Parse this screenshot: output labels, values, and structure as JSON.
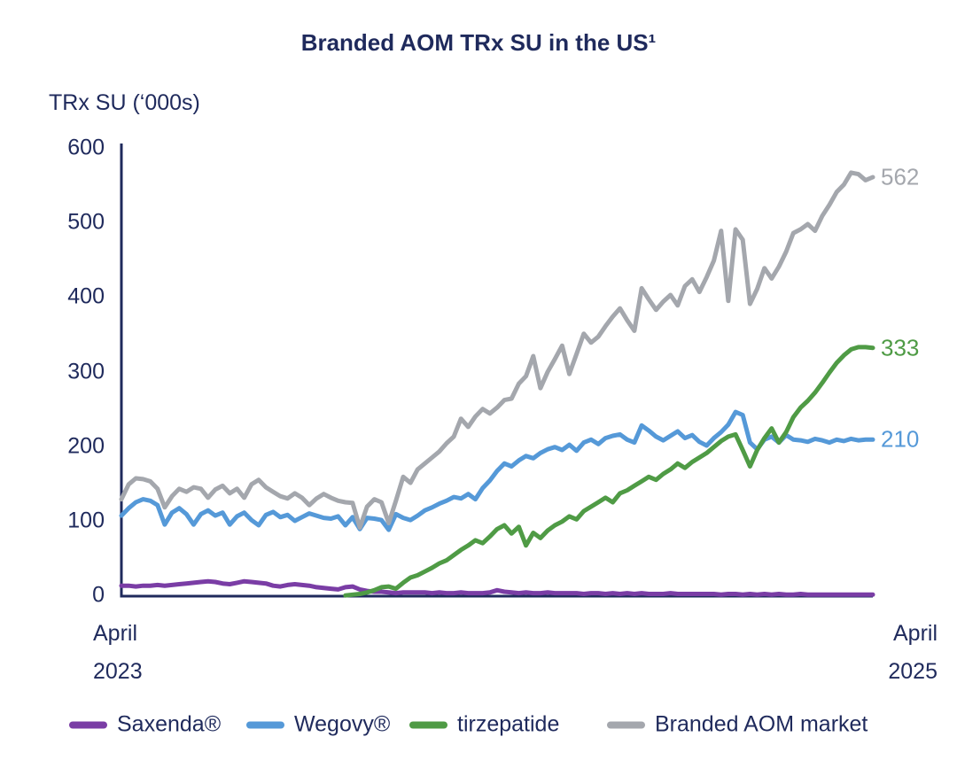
{
  "title": "Branded AOM TRx SU in the US¹",
  "y_axis": {
    "unit_label": "TRx SU (‘000s)",
    "ticks": [
      600,
      500,
      400,
      300,
      200,
      100,
      0
    ],
    "min": 0,
    "max": 600
  },
  "x_axis": {
    "left_label_line1": "April",
    "left_label_line2": "2023",
    "right_label_line1": "April",
    "right_label_line2": "2025"
  },
  "colors": {
    "navy_text": "#1f2a5c",
    "axis": "#1f2a5c",
    "saxenda": "#7a3da5",
    "wegovy": "#5599d8",
    "tirzepatide": "#4f9b45",
    "market": "#a4a7ad"
  },
  "legend": {
    "items": [
      {
        "label": "Saxenda®",
        "color": "#7a3da5"
      },
      {
        "label": "Wegovy®",
        "color": "#5599d8"
      },
      {
        "label": "tirzepatide",
        "color": "#4f9b45"
      },
      {
        "label": "Branded AOM market",
        "color": "#a4a7ad"
      }
    ]
  },
  "chart_data": {
    "type": "line",
    "title": "Branded AOM TRx SU in the US¹",
    "ylabel": "TRx SU (‘000s)",
    "ylim": [
      0,
      600
    ],
    "x_unit": "weeks",
    "x_range": [
      "April 2023",
      "April 2025"
    ],
    "grid": false,
    "legend_position": "bottom",
    "series": [
      {
        "name": "Saxenda®",
        "color": "#7a3da5",
        "end_label": null,
        "values": [
          14,
          14,
          13,
          14,
          14,
          15,
          14,
          15,
          16,
          17,
          18,
          19,
          20,
          19,
          17,
          16,
          18,
          20,
          19,
          18,
          17,
          14,
          13,
          15,
          16,
          15,
          14,
          12,
          11,
          10,
          9,
          12,
          13,
          9,
          7,
          6,
          6,
          5,
          4,
          5,
          5,
          5,
          5,
          4,
          5,
          4,
          4,
          5,
          4,
          4,
          4,
          5,
          8,
          6,
          5,
          4,
          5,
          4,
          4,
          5,
          4,
          4,
          4,
          4,
          3,
          4,
          4,
          3,
          4,
          3,
          4,
          3,
          4,
          3,
          3,
          3,
          4,
          3,
          3,
          3,
          3,
          3,
          3,
          2,
          3,
          3,
          2,
          3,
          2,
          3,
          2,
          3,
          2,
          2,
          3,
          2,
          2,
          2,
          2,
          2,
          2,
          2,
          2,
          2,
          2
        ]
      },
      {
        "name": "Wegovy®",
        "color": "#5599d8",
        "end_label": "210",
        "values": [
          108,
          118,
          126,
          130,
          128,
          122,
          96,
          112,
          118,
          110,
          96,
          110,
          115,
          108,
          112,
          96,
          107,
          112,
          102,
          95,
          109,
          113,
          106,
          109,
          101,
          106,
          111,
          108,
          105,
          104,
          107,
          95,
          106,
          90,
          105,
          104,
          102,
          89,
          110,
          105,
          102,
          108,
          115,
          119,
          124,
          128,
          133,
          131,
          137,
          130,
          145,
          155,
          168,
          178,
          174,
          182,
          188,
          185,
          192,
          197,
          200,
          196,
          203,
          195,
          206,
          210,
          204,
          212,
          215,
          217,
          210,
          206,
          229,
          222,
          214,
          209,
          215,
          221,
          212,
          216,
          207,
          202,
          212,
          220,
          230,
          247,
          243,
          206,
          197,
          210,
          214,
          206,
          216,
          210,
          209,
          207,
          211,
          209,
          206,
          210,
          208,
          211,
          209,
          210,
          210
        ]
      },
      {
        "name": "tirzepatide",
        "color": "#4f9b45",
        "end_label": "333",
        "values": [
          null,
          null,
          null,
          null,
          null,
          null,
          null,
          null,
          null,
          null,
          null,
          null,
          null,
          null,
          null,
          null,
          null,
          null,
          null,
          null,
          null,
          null,
          null,
          null,
          null,
          null,
          null,
          null,
          null,
          null,
          null,
          1,
          2,
          3,
          5,
          8,
          12,
          13,
          10,
          18,
          25,
          28,
          33,
          38,
          44,
          48,
          55,
          62,
          68,
          75,
          71,
          80,
          90,
          95,
          84,
          93,
          68,
          85,
          78,
          88,
          95,
          100,
          107,
          103,
          114,
          120,
          126,
          132,
          126,
          138,
          142,
          148,
          154,
          160,
          156,
          164,
          170,
          178,
          172,
          180,
          186,
          192,
          200,
          208,
          214,
          217,
          196,
          174,
          196,
          212,
          225,
          206,
          220,
          240,
          253,
          262,
          273,
          286,
          300,
          313,
          323,
          331,
          334,
          334,
          333
        ]
      },
      {
        "name": "Branded AOM market",
        "color": "#a4a7ad",
        "end_label": "562",
        "values": [
          130,
          150,
          158,
          157,
          154,
          144,
          119,
          134,
          144,
          140,
          146,
          144,
          132,
          143,
          148,
          138,
          144,
          132,
          150,
          156,
          146,
          140,
          134,
          131,
          138,
          132,
          122,
          131,
          137,
          132,
          128,
          126,
          125,
          92,
          120,
          130,
          126,
          98,
          128,
          160,
          152,
          170,
          178,
          186,
          194,
          205,
          214,
          238,
          227,
          241,
          251,
          245,
          253,
          263,
          265,
          285,
          295,
          322,
          279,
          301,
          318,
          336,
          298,
          325,
          352,
          340,
          348,
          362,
          375,
          386,
          370,
          356,
          413,
          398,
          384,
          395,
          404,
          390,
          416,
          425,
          408,
          428,
          450,
          490,
          396,
          492,
          478,
          392,
          412,
          440,
          426,
          442,
          462,
          487,
          492,
          499,
          490,
          510,
          525,
          542,
          552,
          568,
          566,
          558,
          562
        ]
      }
    ]
  }
}
